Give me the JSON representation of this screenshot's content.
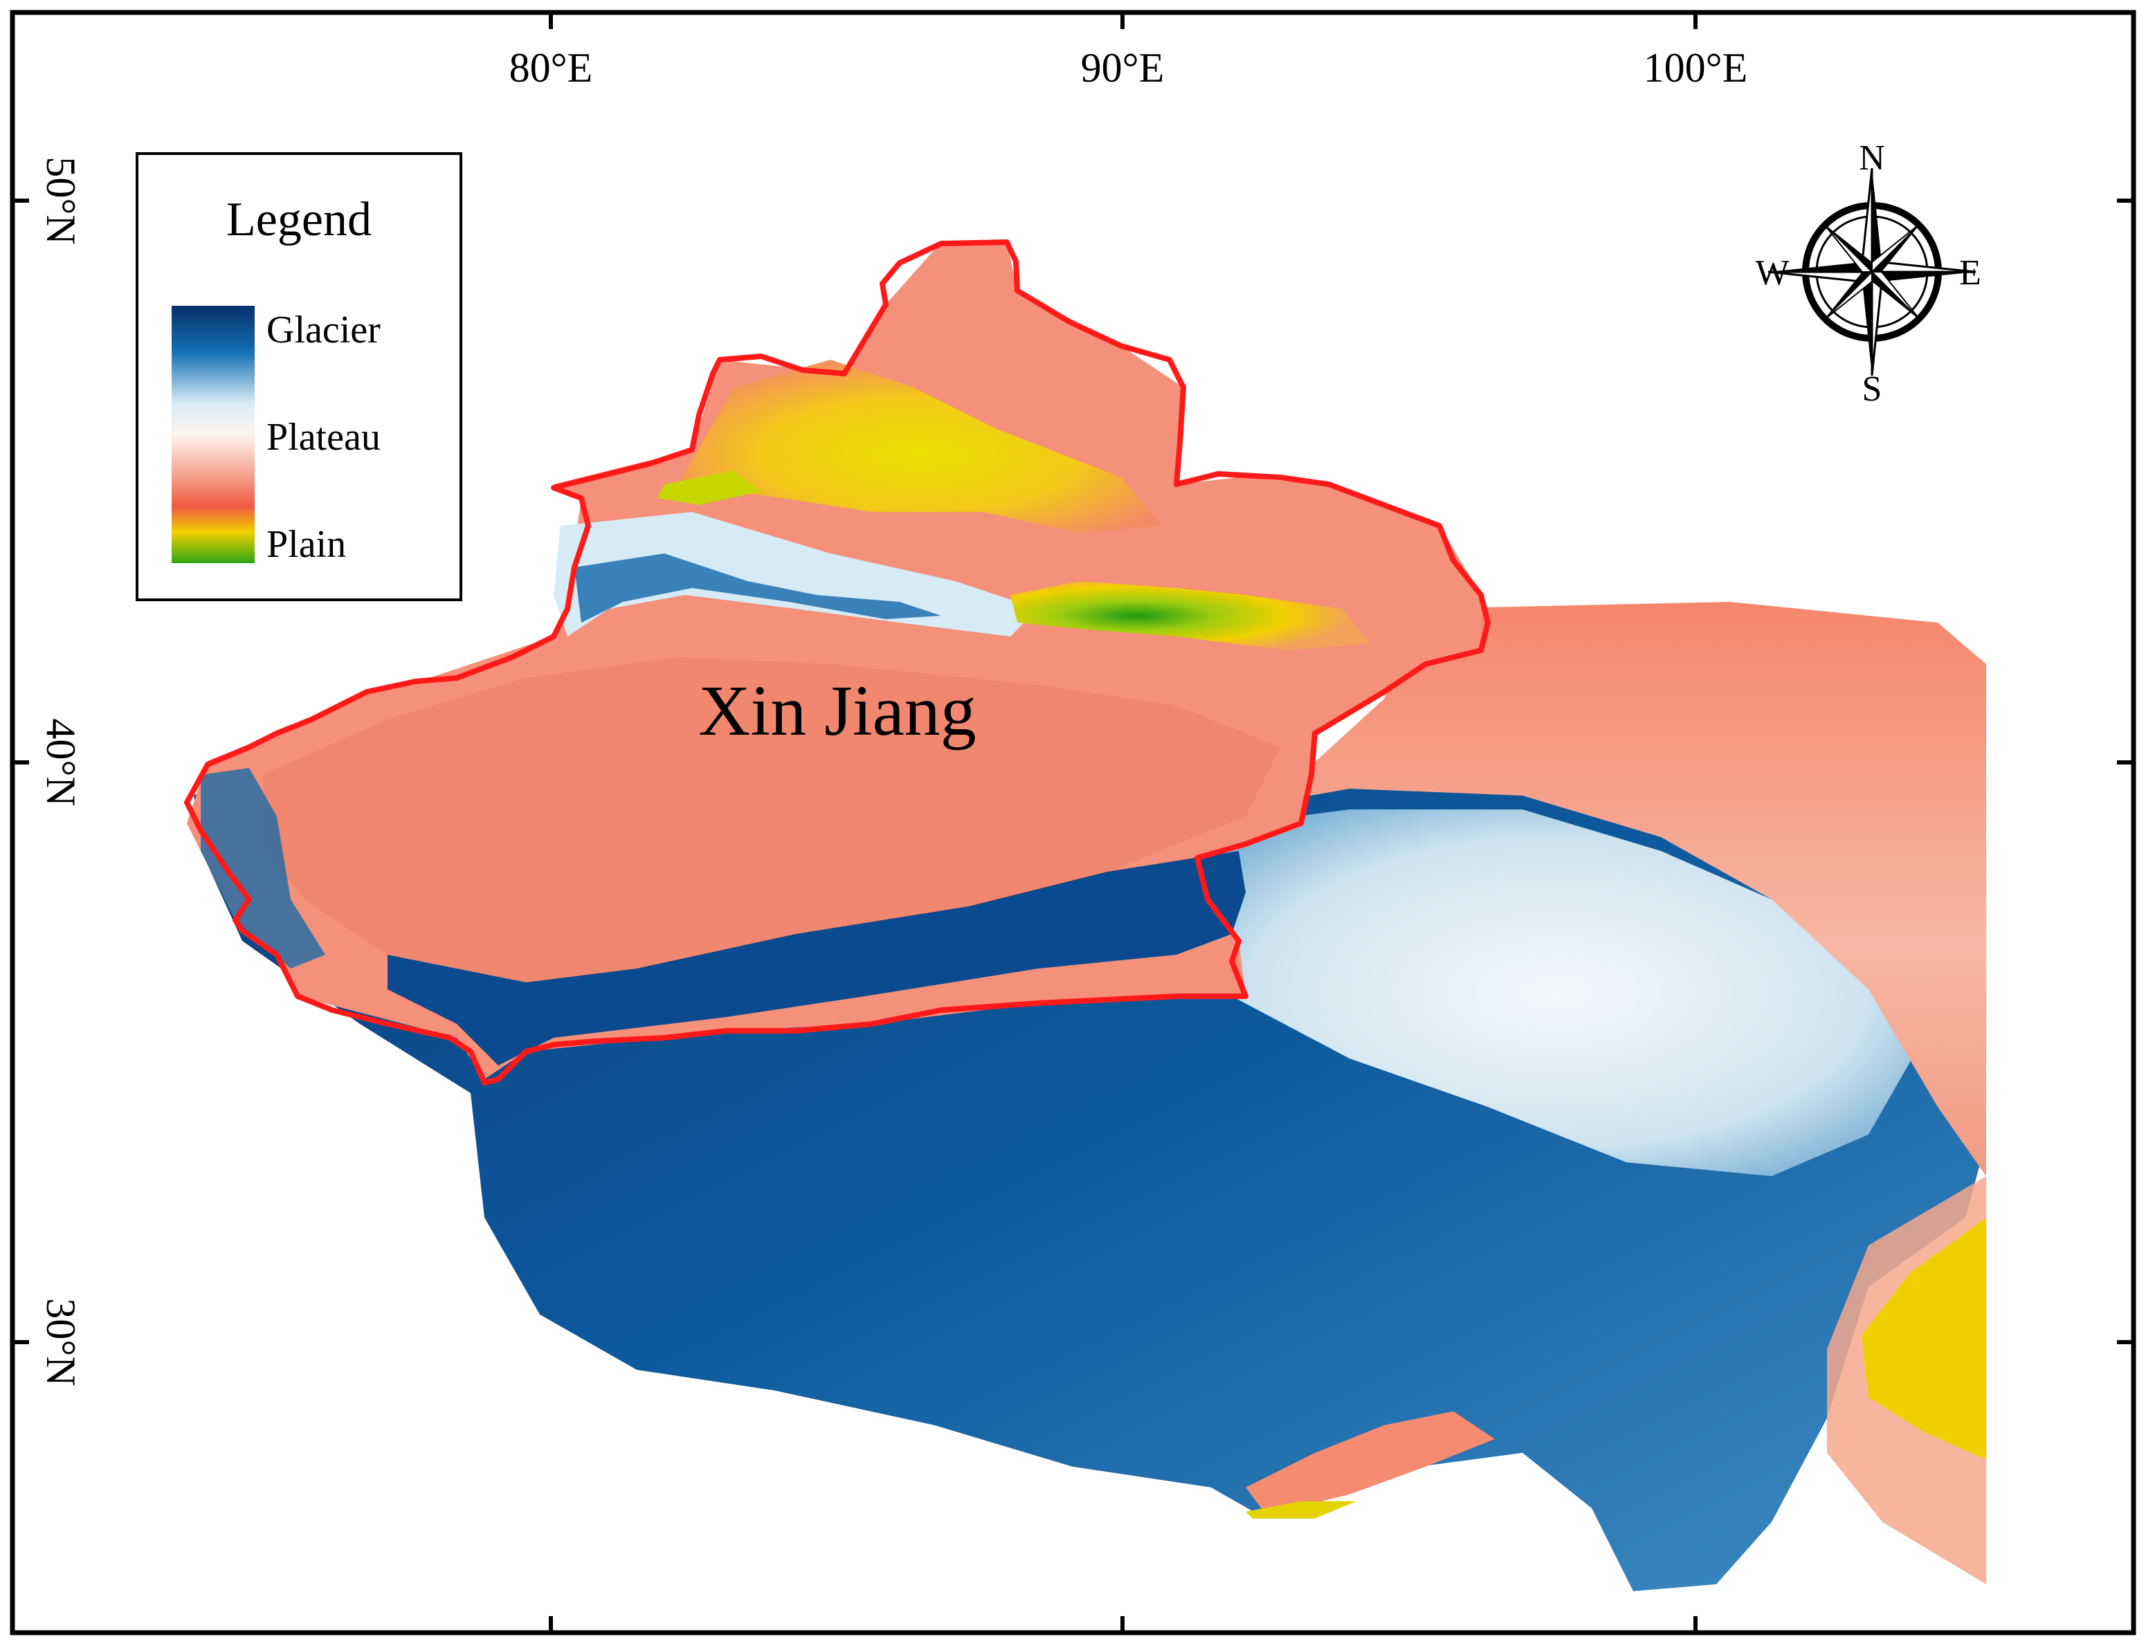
{
  "map": {
    "region_label": "Xin Jiang",
    "longitude_labels": [
      "80°E",
      "90°E",
      "100°E"
    ],
    "latitude_labels": [
      "50°N",
      "40°N",
      "30°N"
    ]
  },
  "legend": {
    "title": "Legend",
    "items": [
      {
        "label": "Glacier",
        "color": "#0a3f7c"
      },
      {
        "label": "Plateau",
        "color": "#f4f6f8"
      },
      {
        "label": "Plain",
        "color": "#2aa612"
      }
    ],
    "ramp_colors": [
      "#062f6a",
      "#1470b3",
      "#d9ecf5",
      "#fdf4ef",
      "#f5a28c",
      "#ef5b41",
      "#f2d000",
      "#2aa612"
    ]
  },
  "compass": {
    "n": "N",
    "e": "E",
    "s": "S",
    "w": "W"
  },
  "colors": {
    "boundary": "#ff1a1a",
    "glacier": "#0a4a8a",
    "plateau": "#eef5fa",
    "plain": "#f3866f",
    "lowland": "#f0d000"
  }
}
